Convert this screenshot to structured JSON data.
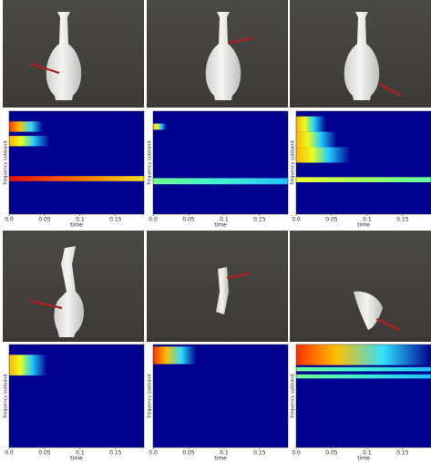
{
  "axes": {
    "xlabel": "time",
    "ylabel": "frequency subband",
    "xlim": [
      0,
      0.19
    ],
    "xticks": [
      {
        "value": 0,
        "label": "0.0"
      },
      0.05,
      0.1,
      0.15
    ]
  }
}
